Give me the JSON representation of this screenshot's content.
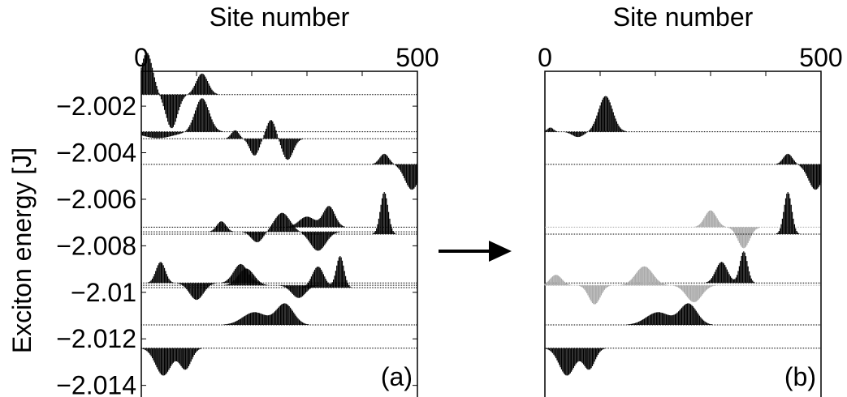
{
  "chart_data": [
    {
      "type": "line",
      "panel_label": "(a)",
      "xlabel": "Site number",
      "ylabel": "Exciton energy [J]",
      "x_tick_labels": [
        "0",
        "500"
      ],
      "xlim": [
        0,
        500
      ],
      "ylim": [
        -2.0145,
        -2.0005
      ],
      "y_tick_labels": [
        "−2.002",
        "−2.004",
        "−2.006",
        "−2.008",
        "−2.01",
        "−2.012",
        "−2.014"
      ],
      "y_ticks": [
        -2.002,
        -2.004,
        -2.006,
        -2.008,
        -2.01,
        -2.012,
        -2.014
      ],
      "series": [
        {
          "energy": -2.0015,
          "peaks": [
            [
              10,
              15,
              2.0
            ],
            [
              55,
              15,
              -1.6
            ],
            [
              110,
              15,
              1.0
            ]
          ]
        },
        {
          "energy": -2.0031,
          "peaks": [
            [
              30,
              40,
              -0.3
            ],
            [
              110,
              18,
              1.6
            ]
          ]
        },
        {
          "energy": -2.0034,
          "peaks": [
            [
              170,
              10,
              0.4
            ],
            [
              205,
              12,
              -0.8
            ],
            [
              235,
              12,
              0.9
            ],
            [
              265,
              14,
              -1.0
            ]
          ]
        },
        {
          "energy": -2.0045,
          "peaks": [
            [
              440,
              12,
              0.5
            ],
            [
              490,
              18,
              -1.2
            ]
          ]
        },
        {
          "energy": -2.0072,
          "peaks": [
            [
              300,
              20,
              0.5
            ],
            [
              340,
              15,
              1.0
            ]
          ]
        },
        {
          "energy": -2.0074,
          "peaks": [
            [
              145,
              12,
              0.5
            ],
            [
              210,
              15,
              -0.5
            ],
            [
              255,
              20,
              0.9
            ],
            [
              320,
              20,
              -0.9
            ]
          ]
        },
        {
          "energy": -2.0075,
          "peaks": [
            [
              440,
              10,
              2.0
            ]
          ]
        },
        {
          "energy": -2.0096,
          "peaks": [
            [
              35,
              12,
              1.0
            ],
            [
              100,
              18,
              -0.8
            ],
            [
              180,
              18,
              0.9
            ]
          ]
        },
        {
          "energy": -2.0097,
          "peaks": [
            [
              190,
              20,
              0.8
            ],
            [
              285,
              18,
              -0.6
            ]
          ]
        },
        {
          "energy": -2.0098,
          "peaks": [
            [
              320,
              15,
              1.0
            ],
            [
              360,
              10,
              1.5
            ]
          ]
        },
        {
          "energy": -2.0114,
          "peaks": [
            [
              205,
              30,
              0.6
            ],
            [
              260,
              22,
              1.0
            ]
          ]
        },
        {
          "energy": -2.0124,
          "peaks": [
            [
              40,
              20,
              -1.3
            ],
            [
              80,
              15,
              -1.0
            ]
          ]
        }
      ]
    },
    {
      "type": "line",
      "panel_label": "(b)",
      "xlabel": "Site number",
      "x_tick_labels": [
        "0",
        "500"
      ],
      "xlim": [
        0,
        500
      ],
      "ylim": [
        -2.0145,
        -2.0005
      ],
      "series": [
        {
          "energy": -2.0031,
          "color": "#000000",
          "peaks": [
            [
              10,
              8,
              0.2
            ],
            [
              60,
              15,
              -0.25
            ],
            [
              110,
              18,
              1.7
            ]
          ]
        },
        {
          "energy": -2.0045,
          "color": "#000000",
          "peaks": [
            [
              440,
              12,
              0.5
            ],
            [
              490,
              18,
              -1.2
            ]
          ]
        },
        {
          "energy": -2.0072,
          "color": "#aaaaaa",
          "peaks": [
            [
              300,
              15,
              0.8
            ],
            [
              360,
              15,
              -1.0
            ]
          ]
        },
        {
          "energy": -2.0075,
          "color": "#000000",
          "peaks": [
            [
              440,
              10,
              2.0
            ]
          ]
        },
        {
          "energy": -2.0096,
          "color": "#000000",
          "peaks": [
            [
              320,
              15,
              1.0
            ],
            [
              360,
              10,
              1.5
            ]
          ]
        },
        {
          "energy": -2.0097,
          "color": "#aaaaaa",
          "peaks": [
            [
              20,
              15,
              0.5
            ],
            [
              90,
              15,
              -0.9
            ],
            [
              180,
              22,
              0.9
            ],
            [
              270,
              20,
              -0.8
            ]
          ]
        },
        {
          "energy": -2.0114,
          "color": "#000000",
          "peaks": [
            [
              205,
              30,
              0.6
            ],
            [
              260,
              22,
              1.0
            ]
          ]
        },
        {
          "energy": -2.0124,
          "color": "#000000",
          "peaks": [
            [
              40,
              20,
              -1.3
            ],
            [
              80,
              15,
              -1.0
            ]
          ]
        }
      ]
    }
  ]
}
